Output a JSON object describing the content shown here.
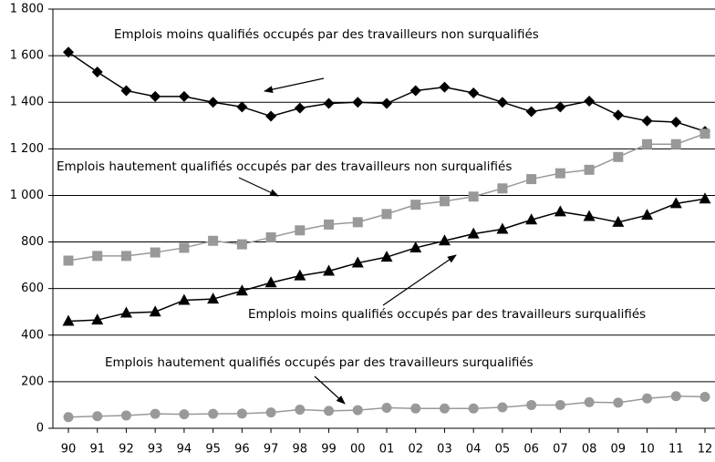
{
  "chart_data": {
    "type": "line",
    "categories": [
      "90",
      "91",
      "92",
      "93",
      "94",
      "95",
      "96",
      "97",
      "98",
      "99",
      "00",
      "01",
      "02",
      "03",
      "04",
      "05",
      "06",
      "07",
      "08",
      "09",
      "10",
      "11",
      "12"
    ],
    "series": [
      {
        "name": "Emplois moins qualifiés occupés par des travailleurs non surqualifiés",
        "color": "#000000",
        "marker": "diamond",
        "values": [
          1615,
          1530,
          1450,
          1425,
          1425,
          1400,
          1380,
          1340,
          1375,
          1395,
          1400,
          1395,
          1450,
          1465,
          1440,
          1400,
          1360,
          1380,
          1405,
          1345,
          1320,
          1315,
          1275
        ]
      },
      {
        "name": "Emplois hautement qualifiés occupés par des travailleurs non surqualifiés",
        "color": "#999999",
        "marker": "square",
        "values": [
          720,
          740,
          740,
          755,
          775,
          805,
          790,
          820,
          850,
          875,
          885,
          920,
          960,
          975,
          995,
          1030,
          1070,
          1095,
          1110,
          1165,
          1220,
          1220,
          1265
        ]
      },
      {
        "name": "Emplois moins qualifiés occupés par des travailleurs surqualifiés",
        "color": "#000000",
        "marker": "triangle",
        "values": [
          460,
          465,
          495,
          500,
          550,
          555,
          590,
          625,
          655,
          675,
          710,
          735,
          775,
          805,
          835,
          855,
          895,
          930,
          910,
          885,
          915,
          965,
          985
        ]
      },
      {
        "name": "Emplois hautement qualifiés occupés par des travailleurs surqualifiés",
        "color": "#999999",
        "marker": "circle",
        "values": [
          48,
          52,
          55,
          62,
          60,
          62,
          63,
          68,
          80,
          75,
          78,
          88,
          85,
          85,
          85,
          90,
          100,
          100,
          112,
          110,
          128,
          138,
          135
        ]
      }
    ],
    "ylim": [
      0,
      1800
    ],
    "yticks": [
      0,
      200,
      400,
      600,
      800,
      {
        "value": 1000,
        "label": "1 000"
      },
      {
        "value": 1200,
        "label": "1 200"
      },
      {
        "value": 1400,
        "label": "1 400"
      },
      {
        "value": 1600,
        "label": "1 600"
      },
      {
        "value": 1800,
        "label": "1 800"
      }
    ],
    "grid": true
  }
}
